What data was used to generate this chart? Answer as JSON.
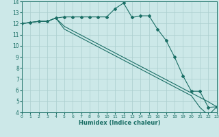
{
  "xlabel": "Humidex (Indice chaleur)",
  "background_color": "#cce8e8",
  "grid_color": "#aacece",
  "line_color": "#1a6e65",
  "xlim": [
    0,
    23
  ],
  "ylim": [
    4,
    14
  ],
  "xticks": [
    0,
    1,
    2,
    3,
    4,
    5,
    6,
    7,
    8,
    9,
    10,
    11,
    12,
    13,
    14,
    15,
    16,
    17,
    18,
    19,
    20,
    21,
    22,
    23
  ],
  "yticks": [
    4,
    5,
    6,
    7,
    8,
    9,
    10,
    11,
    12,
    13,
    14
  ],
  "series1_x": [
    0,
    1,
    2,
    3,
    4,
    5,
    6,
    7,
    8,
    9,
    10,
    11,
    12,
    13,
    14,
    15,
    16,
    17,
    18,
    19,
    20,
    21,
    22,
    23
  ],
  "series1_y": [
    12.0,
    12.1,
    12.2,
    12.2,
    12.5,
    12.6,
    12.6,
    12.6,
    12.6,
    12.6,
    12.6,
    13.35,
    13.85,
    12.55,
    12.7,
    12.7,
    11.5,
    10.5,
    9.0,
    7.3,
    5.9,
    5.9,
    4.45,
    4.5
  ],
  "series2_x": [
    0,
    1,
    2,
    3,
    4,
    5,
    6,
    7,
    8,
    9,
    10,
    11,
    12,
    13,
    14,
    15,
    16,
    17,
    18,
    19,
    20,
    21,
    22,
    23
  ],
  "series2_y": [
    12.0,
    12.1,
    12.2,
    12.2,
    12.5,
    11.75,
    11.35,
    10.95,
    10.55,
    10.15,
    9.75,
    9.35,
    8.95,
    8.55,
    8.15,
    7.75,
    7.35,
    6.95,
    6.55,
    6.15,
    5.75,
    5.35,
    4.95,
    4.5
  ],
  "series3_x": [
    0,
    1,
    2,
    3,
    4,
    5,
    6,
    7,
    8,
    9,
    10,
    11,
    12,
    13,
    14,
    15,
    16,
    17,
    18,
    19,
    20,
    21,
    22,
    23
  ],
  "series3_y": [
    12.0,
    12.1,
    12.2,
    12.2,
    12.5,
    11.5,
    11.1,
    10.7,
    10.3,
    9.9,
    9.5,
    9.1,
    8.7,
    8.3,
    7.9,
    7.5,
    7.1,
    6.7,
    6.3,
    5.9,
    5.5,
    4.45,
    3.75,
    4.5
  ]
}
